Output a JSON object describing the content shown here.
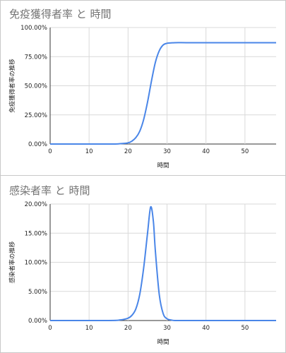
{
  "chart_data": [
    {
      "type": "line",
      "title": "免疫獲得者率 と 時間",
      "xlabel": "時間",
      "ylabel": "免疫獲得者率の推移",
      "xlim": [
        0,
        58
      ],
      "ylim": [
        0,
        1
      ],
      "x_ticks": [
        0,
        10,
        20,
        30,
        40,
        50
      ],
      "y_ticks": [
        "0.00%",
        "25.00%",
        "50.00%",
        "75.00%",
        "100.00%"
      ],
      "y_tick_values": [
        0,
        0.25,
        0.5,
        0.75,
        1.0
      ],
      "grid": true,
      "series_color": "#4a86e8",
      "series": [
        {
          "x": [
            0,
            15,
            18,
            20,
            21,
            22,
            23,
            24,
            25,
            26,
            27,
            28,
            29,
            30,
            31,
            32,
            35,
            40,
            45,
            50,
            55,
            58
          ],
          "values": [
            0,
            0.0,
            0.003,
            0.01,
            0.025,
            0.055,
            0.11,
            0.21,
            0.36,
            0.54,
            0.7,
            0.8,
            0.85,
            0.865,
            0.868,
            0.87,
            0.87,
            0.87,
            0.87,
            0.87,
            0.87,
            0.87
          ]
        }
      ]
    },
    {
      "type": "line",
      "title": "感染者率 と 時間",
      "xlabel": "時間",
      "ylabel": "感染者率の推移",
      "xlim": [
        0,
        58
      ],
      "ylim": [
        0,
        0.2
      ],
      "x_ticks": [
        0,
        10,
        20,
        30,
        40,
        50
      ],
      "y_ticks": [
        "0.00%",
        "5.00%",
        "10.00%",
        "15.00%",
        "20.00%"
      ],
      "y_tick_values": [
        0,
        0.05,
        0.1,
        0.15,
        0.2
      ],
      "grid": true,
      "series_color": "#4a86e8",
      "series": [
        {
          "x": [
            0,
            15,
            18,
            20,
            21,
            22,
            23,
            24,
            25,
            25.8,
            26.5,
            27,
            28,
            29,
            30,
            31,
            32,
            35,
            40,
            50,
            58
          ],
          "values": [
            0,
            0.0,
            0.001,
            0.004,
            0.009,
            0.02,
            0.045,
            0.09,
            0.15,
            0.195,
            0.17,
            0.12,
            0.045,
            0.012,
            0.003,
            0.001,
            0.0,
            0.0,
            0.0,
            0.0,
            0.0
          ]
        }
      ]
    }
  ]
}
